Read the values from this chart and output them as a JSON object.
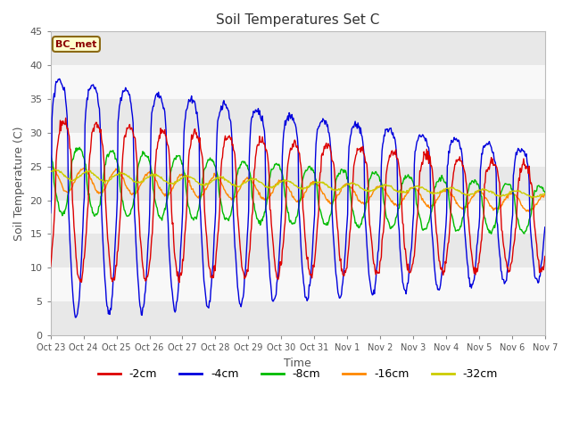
{
  "title": "Soil Temperatures Set C",
  "xlabel": "Time",
  "ylabel": "Soil Temperature (C)",
  "ylim": [
    0,
    45
  ],
  "yticks": [
    0,
    5,
    10,
    15,
    20,
    25,
    30,
    35,
    40,
    45
  ],
  "annotation": "BC_met",
  "series_labels": [
    "-2cm",
    "-4cm",
    "-8cm",
    "-16cm",
    "-32cm"
  ],
  "series_colors": [
    "#dd0000",
    "#0000dd",
    "#00bb00",
    "#ff8800",
    "#cccc00"
  ],
  "background_color": "#f0f0f0",
  "plot_bg_color": "#ffffff",
  "tick_labels": [
    "Oct 23",
    "Oct 24",
    "Oct 25",
    "Oct 26",
    "Oct 27",
    "Oct 28",
    "Oct 29",
    "Oct 30",
    "Oct 31",
    "Nov 1",
    "Nov 2",
    "Nov 3",
    "Nov 4",
    "Nov 5",
    "Nov 6",
    "Nov 7"
  ],
  "num_days": 15,
  "pts_per_day": 48,
  "band_colors": [
    "#e8e8e8",
    "#f8f8f8"
  ]
}
